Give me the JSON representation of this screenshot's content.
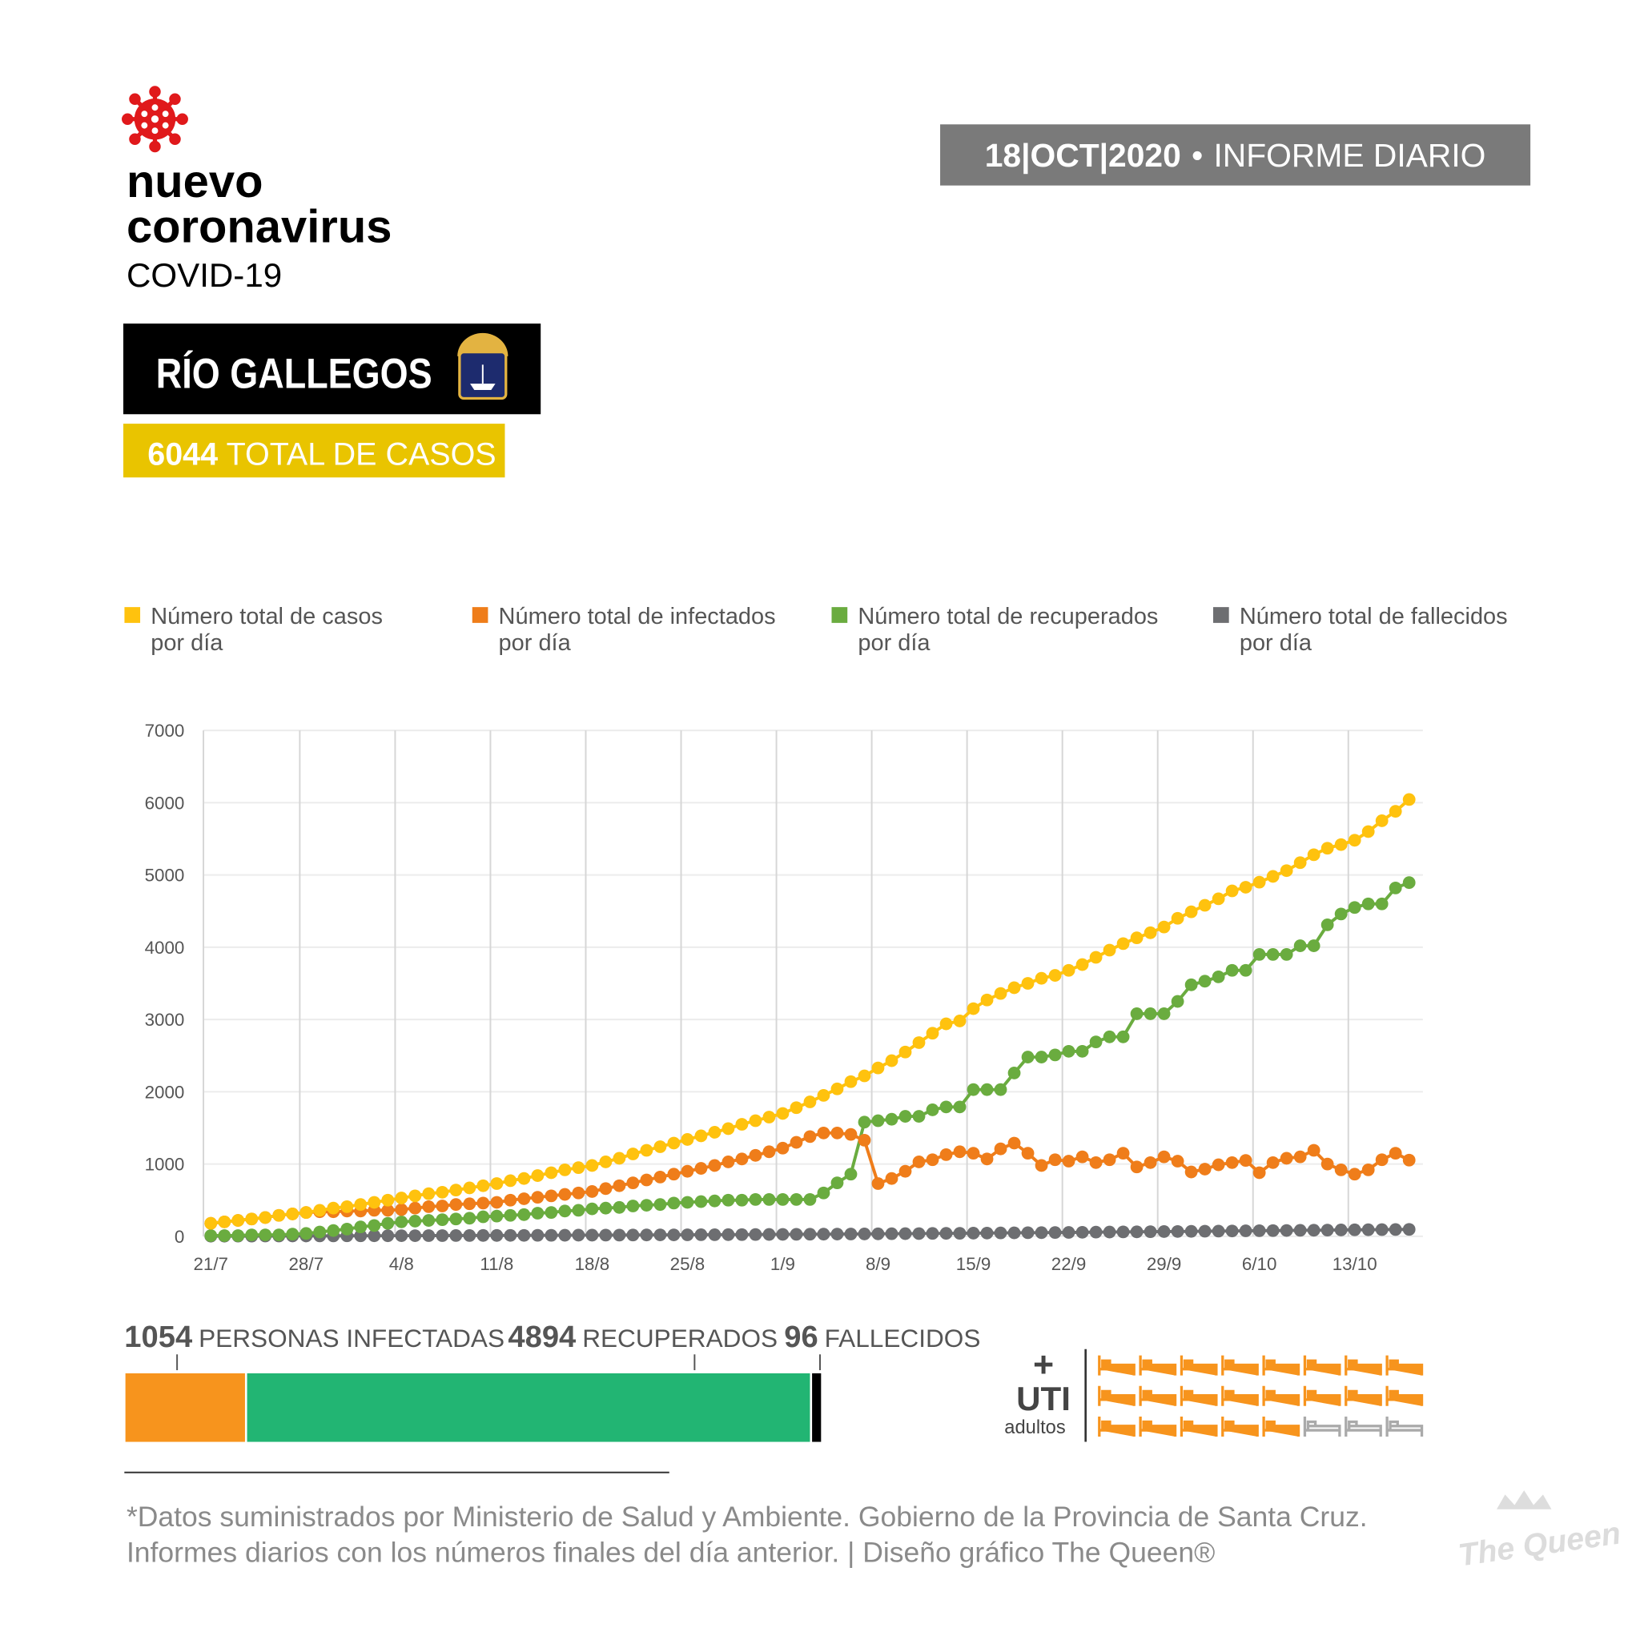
{
  "header": {
    "title_line1": "nuevo",
    "title_line2": "coronavirus",
    "subtitle": "COVID-19",
    "date": "18|OCT|2020",
    "separator": "•",
    "report": "INFORME DIARIO",
    "city": "RÍO GALLEGOS",
    "total_cases": 6044,
    "total_label": "TOTAL DE CASOS",
    "total_sign": "+"
  },
  "chart_data": {
    "type": "line",
    "categories": [
      "21/7",
      null,
      null,
      null,
      null,
      null,
      null,
      "28/7",
      null,
      null,
      null,
      null,
      null,
      null,
      "4/8",
      null,
      null,
      null,
      null,
      null,
      null,
      "11/8",
      null,
      null,
      null,
      null,
      null,
      null,
      "18/8",
      null,
      null,
      null,
      null,
      null,
      null,
      "25/8",
      null,
      null,
      null,
      null,
      null,
      null,
      "1/9",
      null,
      null,
      null,
      null,
      null,
      null,
      "8/9",
      null,
      null,
      null,
      null,
      null,
      null,
      "15/9",
      null,
      null,
      null,
      null,
      null,
      null,
      "22/9",
      null,
      null,
      null,
      null,
      null,
      null,
      "29/9",
      null,
      null,
      null,
      null,
      null,
      null,
      "6/10",
      null,
      null,
      null,
      null,
      null,
      null,
      "13/10",
      null,
      null,
      null,
      null
    ],
    "series": [
      {
        "name": "Número total de casos por día",
        "color": "#ffc20e",
        "values": [
          180,
          200,
          220,
          240,
          260,
          290,
          310,
          330,
          360,
          390,
          410,
          440,
          470,
          500,
          530,
          560,
          590,
          610,
          640,
          670,
          700,
          730,
          770,
          800,
          840,
          880,
          920,
          950,
          980,
          1030,
          1080,
          1140,
          1190,
          1240,
          1290,
          1340,
          1390,
          1440,
          1490,
          1550,
          1600,
          1650,
          1700,
          1780,
          1860,
          1950,
          2040,
          2140,
          2220,
          2330,
          2430,
          2550,
          2680,
          2810,
          2940,
          2980,
          3150,
          3270,
          3360,
          3440,
          3500,
          3570,
          3610,
          3680,
          3760,
          3860,
          3960,
          4050,
          4130,
          4200,
          4280,
          4400,
          4490,
          4580,
          4670,
          4780,
          4830,
          4900,
          4980,
          5060,
          5170,
          5280,
          5370,
          5420,
          5480,
          5600,
          5750,
          5880,
          6044
        ]
      },
      {
        "name": "Número total de infectados por día",
        "color": "#ef7d1a",
        "values": [
          180,
          200,
          220,
          240,
          260,
          290,
          310,
          330,
          340,
          340,
          350,
          350,
          360,
          360,
          370,
          390,
          410,
          420,
          440,
          450,
          460,
          470,
          500,
          520,
          540,
          560,
          580,
          600,
          620,
          660,
          700,
          740,
          780,
          820,
          860,
          900,
          940,
          980,
          1030,
          1070,
          1120,
          1170,
          1220,
          1300,
          1380,
          1430,
          1430,
          1410,
          1330,
          730,
          800,
          900,
          1030,
          1060,
          1130,
          1170,
          1150,
          1070,
          1210,
          1290,
          1150,
          980,
          1060,
          1040,
          1100,
          1020,
          1060,
          1150,
          960,
          1020,
          1100,
          1040,
          890,
          930,
          990,
          1020,
          1050,
          880,
          1020,
          1080,
          1100,
          1190,
          1000,
          920,
          860,
          920,
          1060,
          1150,
          1054
        ]
      },
      {
        "name": "Número total de recuperados por día",
        "color": "#6aac3f",
        "values": [
          10,
          10,
          10,
          20,
          20,
          20,
          30,
          40,
          60,
          80,
          100,
          130,
          150,
          180,
          200,
          210,
          220,
          230,
          240,
          250,
          270,
          280,
          290,
          300,
          320,
          330,
          350,
          360,
          380,
          390,
          400,
          420,
          430,
          440,
          460,
          470,
          480,
          490,
          500,
          500,
          510,
          510,
          510,
          510,
          510,
          600,
          740,
          860,
          1580,
          1600,
          1620,
          1660,
          1660,
          1750,
          1790,
          1790,
          2030,
          2030,
          2030,
          2260,
          2480,
          2480,
          2510,
          2560,
          2560,
          2690,
          2760,
          2760,
          3080,
          3080,
          3080,
          3250,
          3480,
          3530,
          3590,
          3680,
          3680,
          3900,
          3900,
          3900,
          4020,
          4020,
          4310,
          4460,
          4550,
          4600,
          4600,
          4820,
          4894
        ]
      },
      {
        "name": "Número total de fallecidos por día",
        "color": "#6d6e71",
        "values": [
          2,
          2,
          3,
          3,
          4,
          4,
          5,
          5,
          6,
          6,
          7,
          7,
          8,
          8,
          9,
          9,
          10,
          10,
          11,
          11,
          12,
          12,
          13,
          13,
          14,
          14,
          15,
          16,
          16,
          17,
          17,
          18,
          19,
          20,
          20,
          21,
          22,
          22,
          23,
          24,
          25,
          26,
          27,
          28,
          29,
          30,
          31,
          32,
          33,
          34,
          36,
          37,
          38,
          40,
          41,
          42,
          44,
          45,
          47,
          48,
          50,
          51,
          53,
          54,
          56,
          58,
          59,
          61,
          62,
          64,
          66,
          67,
          69,
          71,
          72,
          74,
          76,
          78,
          79,
          81,
          83,
          84,
          86,
          88,
          90,
          91,
          93,
          94,
          96
        ]
      }
    ],
    "ylim": [
      0,
      7000
    ],
    "yticks": [
      0,
      1000,
      2000,
      3000,
      4000,
      5000,
      6000,
      7000
    ],
    "grid": true,
    "markers": true
  },
  "summary": [
    {
      "value": 1054,
      "label": "PERSONAS INFECTADAS",
      "color": "#f7941d"
    },
    {
      "value": 4894,
      "label": "RECUPERADOS",
      "color": "#22b573"
    },
    {
      "value": 96,
      "label": "FALLECIDOS",
      "color": "#000000"
    }
  ],
  "uti": {
    "sign": "+",
    "title": "UTI",
    "subtitle": "adultos",
    "occupied": 21,
    "total": 24,
    "color": "#f7941d"
  },
  "footer": {
    "line1": "*Datos suministrados por Ministerio de Salud y Ambiente. Gobierno de la Provincia de Santa Cruz.",
    "line2": "Informes diarios con los números finales del día anterior. | Diseño gráfico The Queen®"
  },
  "watermark": "The Queen"
}
